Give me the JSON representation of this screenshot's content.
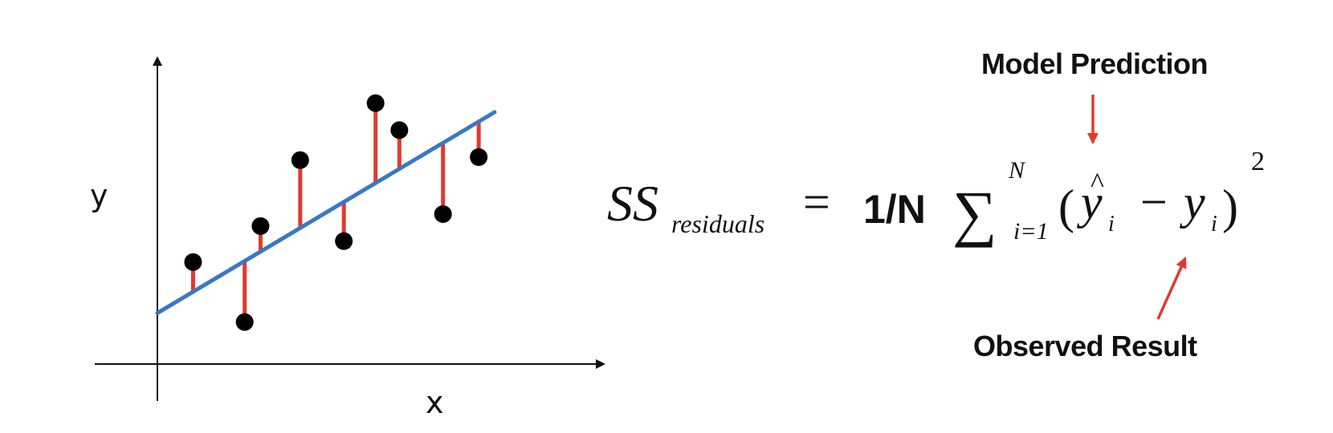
{
  "colors": {
    "axis": "#111111",
    "fit_line": "#3a78c3",
    "residual": "#e03a2f",
    "point": "#000000",
    "arrow": "#e03a2f"
  },
  "plot": {
    "x_label": "x",
    "y_label": "y"
  },
  "chart_data": {
    "type": "scatter",
    "xlim": [
      0,
      10
    ],
    "ylim": [
      0,
      10
    ],
    "points": [
      {
        "x": 0.9,
        "y": 3.4
      },
      {
        "x": 2.2,
        "y": 1.4
      },
      {
        "x": 2.6,
        "y": 4.6
      },
      {
        "x": 3.6,
        "y": 6.8
      },
      {
        "x": 4.7,
        "y": 4.1
      },
      {
        "x": 5.5,
        "y": 8.7
      },
      {
        "x": 6.1,
        "y": 7.8
      },
      {
        "x": 7.2,
        "y": 5.0
      },
      {
        "x": 8.1,
        "y": 6.9
      }
    ],
    "fit_line": {
      "x": [
        0,
        8.5
      ],
      "y": [
        1.7,
        8.4
      ]
    }
  },
  "formula": {
    "lhs_main": "SS",
    "lhs_sub": "residuals",
    "equals": "=",
    "coefficient": "1/N",
    "sum_symbol": "∑",
    "sum_upper": "N",
    "sum_lower": "i=1",
    "open_paren": "(",
    "yhat": "y",
    "hat": "^",
    "index": "i",
    "minus": "−",
    "y": "y",
    "close_paren": ")",
    "power": "2"
  },
  "annotations": {
    "model_prediction": "Model Prediction",
    "observed_result": "Observed Result"
  }
}
